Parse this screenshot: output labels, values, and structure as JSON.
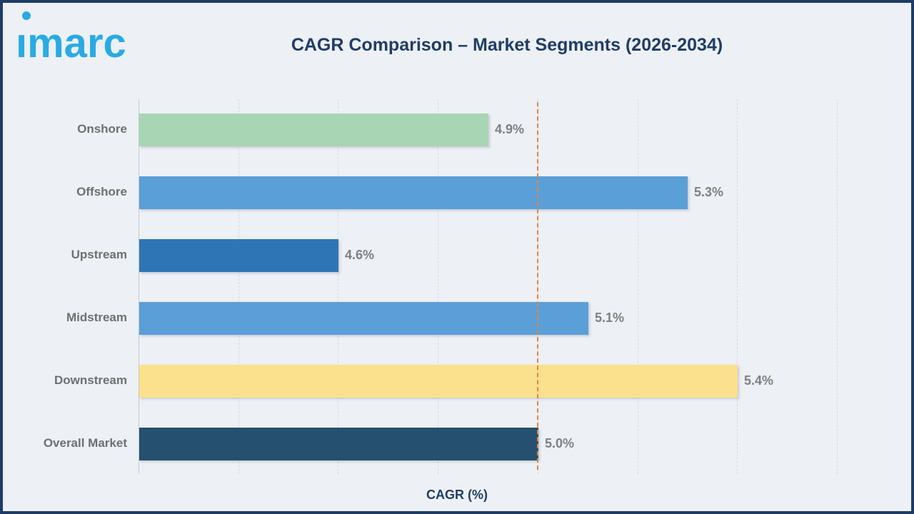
{
  "header": {
    "logo_text": "imarc",
    "logo_color": "#29abe2"
  },
  "chart_data": {
    "type": "bar",
    "orientation": "horizontal",
    "title": "CAGR Comparison – Market Segments (2026-2034)",
    "xlabel": "CAGR (%)",
    "categories": [
      "Onshore",
      "Offshore",
      "Upstream",
      "Midstream",
      "Downstream",
      "Overall Market"
    ],
    "values": [
      4.9,
      5.3,
      4.6,
      5.1,
      5.4,
      5.0
    ],
    "value_labels": [
      "4.9%",
      "5.3%",
      "4.6%",
      "5.1%",
      "5.4%",
      "5.0%"
    ],
    "bar_colors": [
      "#a8d5b4",
      "#5b9fd8",
      "#2e75b6",
      "#5b9fd8",
      "#fbe18e",
      "#26506f"
    ],
    "xlim": [
      4.2,
      5.6
    ],
    "grid_step": 0.2,
    "grid": "vertical-dashed",
    "legend": "none",
    "reference_line": {
      "value": 5.0,
      "color": "#e8833a",
      "style": "dashed"
    },
    "colors": {
      "title": "#1f3d66",
      "category_label": "#6f6f6f",
      "value_label": "#7f7f7f",
      "background": "#edf0f5",
      "border": "#1e3c64"
    }
  }
}
